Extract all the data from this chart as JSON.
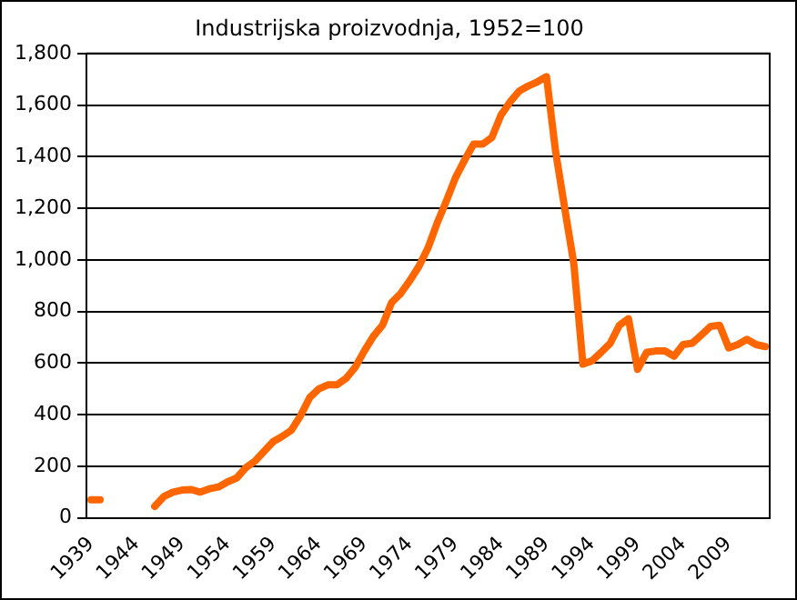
{
  "chart_data": {
    "type": "line",
    "title": "Industrijska proizvodnja, 1952=100",
    "categories": [
      "1939",
      null,
      null,
      null,
      null,
      "1944",
      null,
      null,
      null,
      null,
      "1949",
      null,
      null,
      null,
      null,
      "1954",
      null,
      null,
      null,
      null,
      "1959",
      null,
      null,
      null,
      null,
      "1964",
      null,
      null,
      null,
      null,
      "1969",
      null,
      null,
      null,
      null,
      "1974",
      null,
      null,
      null,
      null,
      "1979",
      null,
      null,
      null,
      null,
      "1984",
      null,
      null,
      null,
      null,
      "1989",
      null,
      null,
      null,
      null,
      "1994",
      null,
      null,
      null,
      null,
      "1999",
      null,
      null,
      null,
      null,
      "2004",
      null,
      null,
      null,
      null,
      "2009",
      null,
      null,
      null,
      null
    ],
    "series": [
      {
        "color": "#ff6600",
        "values": [
          70,
          70,
          null,
          null,
          null,
          null,
          null,
          45,
          83,
          100,
          108,
          110,
          100,
          113,
          120,
          140,
          155,
          195,
          220,
          258,
          296,
          316,
          340,
          396,
          466,
          500,
          516,
          516,
          541,
          584,
          647,
          704,
          747,
          835,
          870,
          920,
          975,
          1047,
          1143,
          1228,
          1318,
          1386,
          1449,
          1449,
          1474,
          1561,
          1612,
          1654,
          1674,
          1690,
          1710,
          1420,
          1200,
          985,
          596,
          609,
          642,
          677,
          747,
          772,
          576,
          642,
          647,
          647,
          627,
          672,
          677,
          709,
          742,
          747,
          659,
          672,
          692,
          672,
          664
        ]
      }
    ],
    "ylim": [
      0,
      1800
    ],
    "yticks": [
      {
        "value": 0,
        "label": "0"
      },
      {
        "value": 200,
        "label": "200"
      },
      {
        "value": 400,
        "label": "400"
      },
      {
        "value": 600,
        "label": "600"
      },
      {
        "value": 800,
        "label": "800"
      },
      {
        "value": 1000,
        "label": "1,000"
      },
      {
        "value": 1200,
        "label": "1,200"
      },
      {
        "value": 1400,
        "label": "1,400"
      },
      {
        "value": 1600,
        "label": "1,600"
      },
      {
        "value": 1800,
        "label": "1,800"
      }
    ],
    "grid": "y",
    "legend": false,
    "marker": "none",
    "line_style": "solid"
  }
}
